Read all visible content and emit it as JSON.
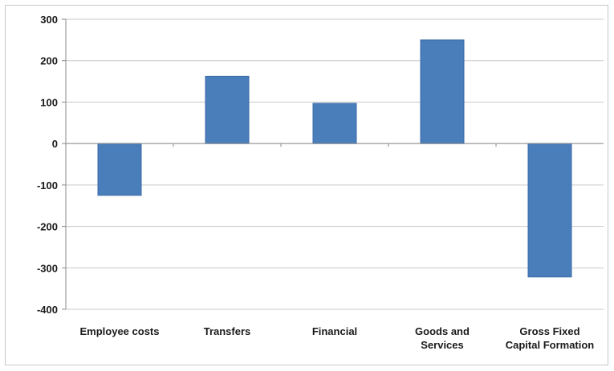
{
  "chart_data": {
    "type": "bar",
    "categories": [
      "Employee costs",
      "Transfers",
      "Financial",
      "Goods and Services",
      "Gross Fixed Capital Formation"
    ],
    "category_label_lines": [
      [
        "Employee costs"
      ],
      [
        "Transfers"
      ],
      [
        "Financial"
      ],
      [
        "Goods and",
        "Services"
      ],
      [
        "Gross Fixed",
        "Capital Formation"
      ]
    ],
    "values": [
      -125,
      162,
      97,
      250,
      -322
    ],
    "yticks": [
      300,
      200,
      100,
      0,
      -100,
      -200,
      -300,
      -400
    ],
    "ylim": [
      -400,
      300
    ],
    "title": "",
    "xlabel": "",
    "ylabel": "",
    "grid": true,
    "legend": "none",
    "bar_color": "#4a7ebb",
    "bar_edge_color": "#3a6aa8",
    "grid_color": "#c9c9c9"
  }
}
